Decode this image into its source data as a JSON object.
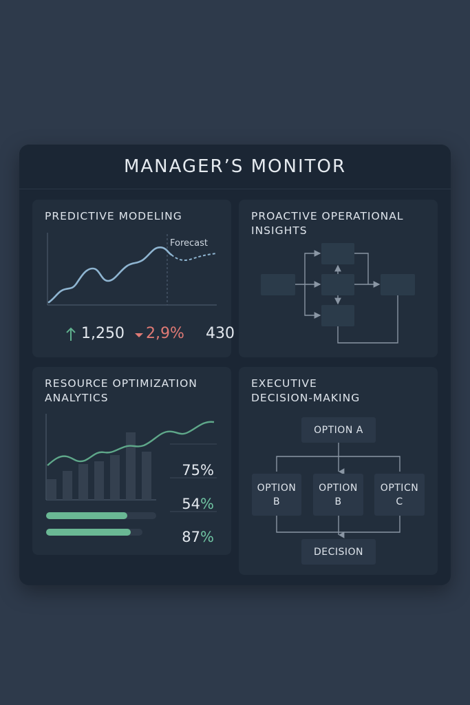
{
  "header": {
    "title": "MANAGER’S MONITOR"
  },
  "panels": {
    "predictive": {
      "title": "PREDICTIVE MODELING",
      "forecast_label": "Forecast",
      "metrics": [
        {
          "value": "1,250",
          "icon": "arrow-up-icon",
          "color": "#5fb08d"
        },
        {
          "value": "2,9%",
          "icon": "arrow-down-icon",
          "color": "#e07a75"
        },
        {
          "value": "430"
        }
      ]
    },
    "proactive": {
      "title_lines": [
        "PROACTIVE OPERATIONAL",
        "INSIGHTS"
      ]
    },
    "resource": {
      "title_lines": [
        "RESOURCE OPTIMIZATION",
        "ANALYTICS"
      ],
      "percentages": [
        {
          "number": "75",
          "symbol": "%"
        },
        {
          "number": "54",
          "symbol": "%"
        },
        {
          "number": "87",
          "symbol": "%"
        }
      ],
      "progress_bars": [
        0.74,
        0.88
      ]
    },
    "executive": {
      "title_lines": [
        "EXECUTIVE",
        "DECISION-MAKING"
      ],
      "option_a": "OPTION A",
      "options": [
        {
          "line1": "OPTION",
          "line2": "B"
        },
        {
          "line1": "OPTION",
          "line2": "B"
        },
        {
          "line1": "OPTICN",
          "line2": "C"
        }
      ],
      "decision": "DECISION"
    }
  },
  "colors": {
    "background": "#2e3a4b",
    "panel": "#222e3c",
    "line": "#8fb5d1",
    "positive": "#5fb08d",
    "negative": "#e07a75",
    "wave": "#5fa88a"
  }
}
